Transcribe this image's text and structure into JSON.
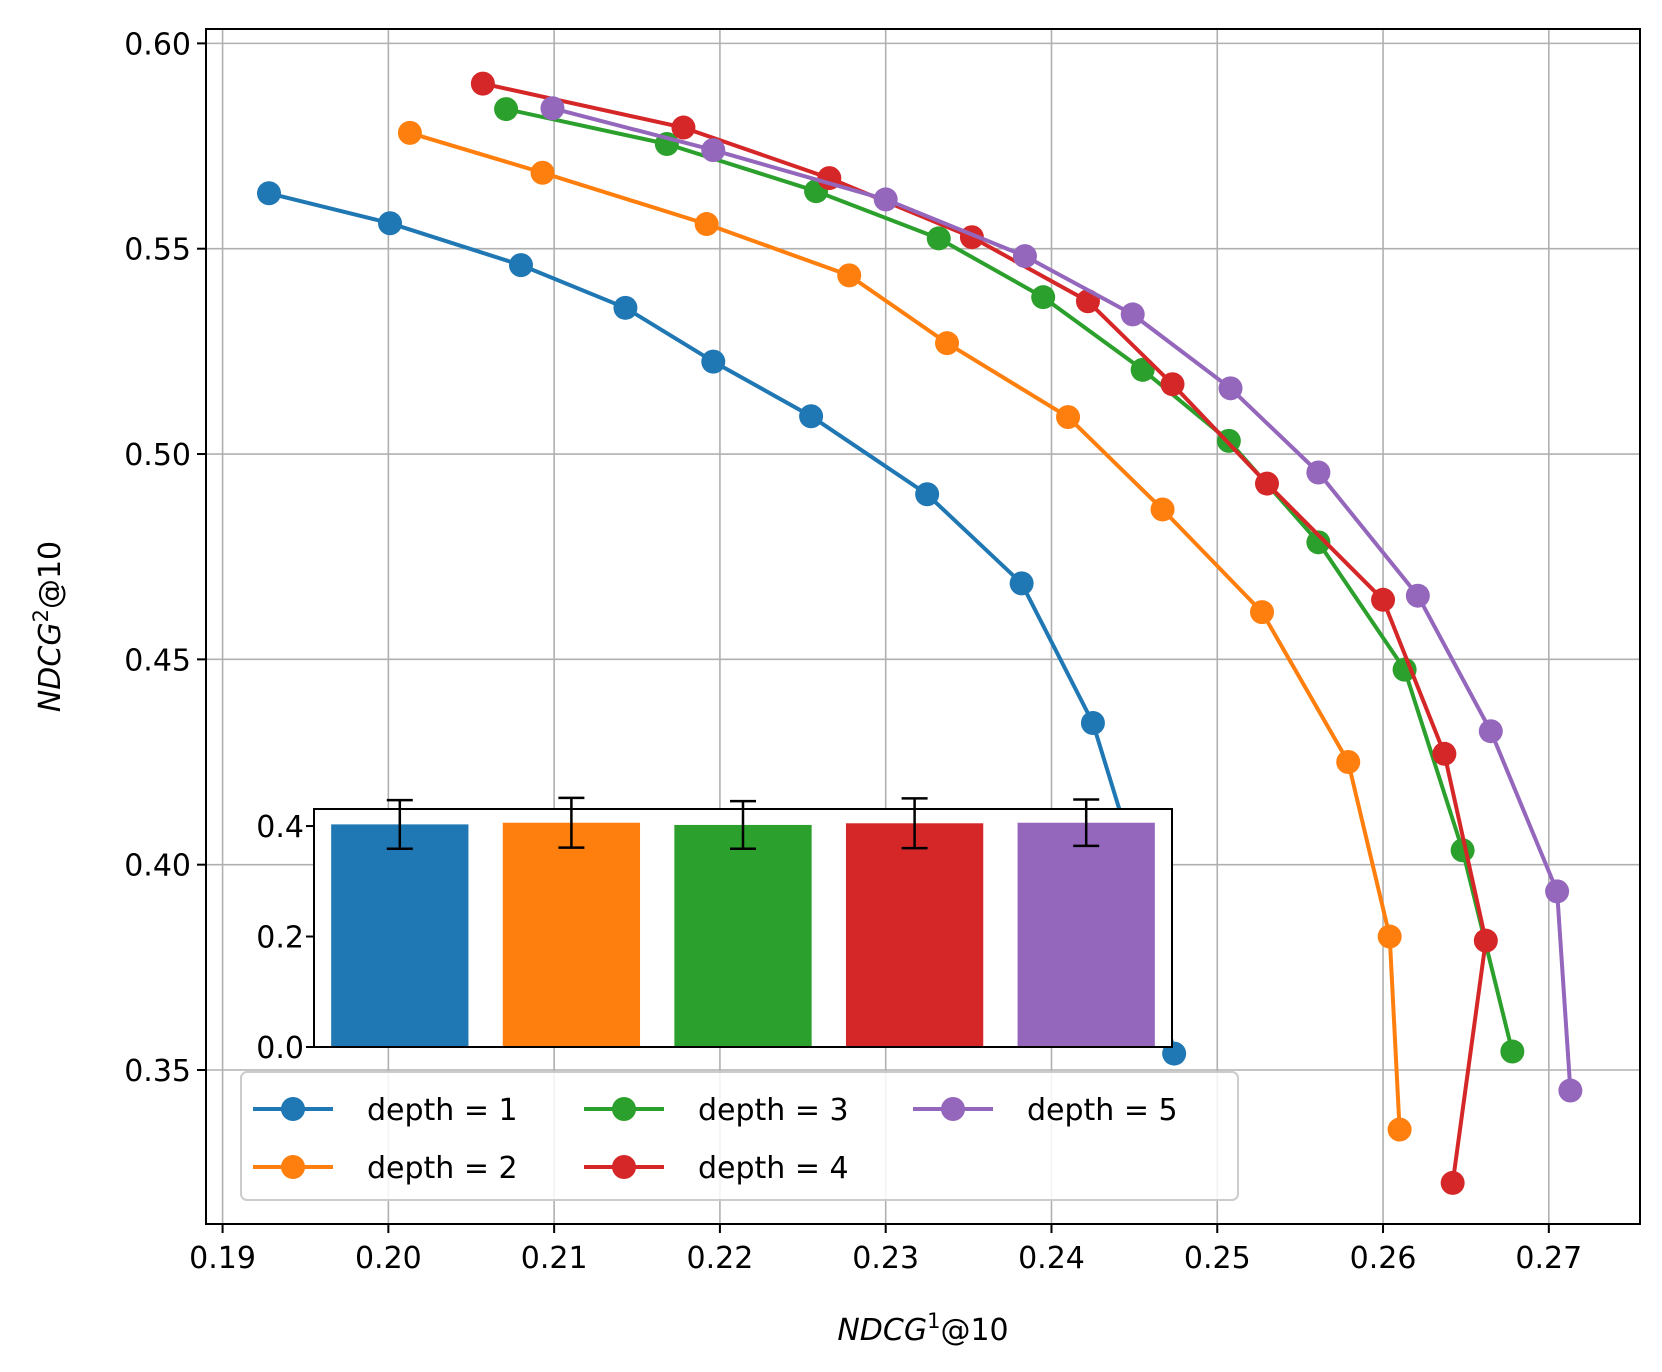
{
  "chart_data": [
    {
      "type": "line",
      "xlabel_main": "NDCG",
      "xlabel_sup": "1",
      "xlabel_suffix": "@10",
      "ylabel_main": "NDCG",
      "ylabel_sup": "2",
      "ylabel_suffix": "@10",
      "xlim": [
        0.189,
        0.2755
      ],
      "ylim": [
        0.3125,
        0.6035
      ],
      "xticks": [
        0.19,
        0.2,
        0.21,
        0.22,
        0.23,
        0.24,
        0.25,
        0.26,
        0.27
      ],
      "xtick_labels": [
        "0.19",
        "0.20",
        "0.21",
        "0.22",
        "0.23",
        "0.24",
        "0.25",
        "0.26",
        "0.27"
      ],
      "yticks": [
        0.35,
        0.4,
        0.45,
        0.5,
        0.55,
        0.6
      ],
      "ytick_labels": [
        "0.35",
        "0.40",
        "0.45",
        "0.50",
        "0.55",
        "0.60"
      ],
      "grid": true,
      "legend_position": "lower-left",
      "series": [
        {
          "name": "depth = 1",
          "color": "#1f77b4",
          "x": [
            0.1928,
            0.2001,
            0.208,
            0.2143,
            0.2196,
            0.2255,
            0.2325,
            0.2382,
            0.2425,
            0.2447,
            0.2474
          ],
          "y": [
            0.5635,
            0.5562,
            0.546,
            0.5356,
            0.5225,
            0.5092,
            0.4902,
            0.4685,
            0.4345,
            0.4055,
            0.354
          ]
        },
        {
          "name": "depth = 2",
          "color": "#ff7f0e",
          "x": [
            0.2013,
            0.2093,
            0.2192,
            0.2278,
            0.2337,
            0.241,
            0.2467,
            0.2527,
            0.2579,
            0.2604,
            0.261
          ],
          "y": [
            0.5782,
            0.5685,
            0.556,
            0.5435,
            0.527,
            0.509,
            0.4865,
            0.4615,
            0.425,
            0.3825,
            0.3355
          ]
        },
        {
          "name": "depth = 3",
          "color": "#2ca02c",
          "x": [
            0.2071,
            0.2168,
            0.2258,
            0.2332,
            0.2395,
            0.2455,
            0.2507,
            0.2561,
            0.2613,
            0.2648,
            0.2678
          ],
          "y": [
            0.584,
            0.5755,
            0.564,
            0.5525,
            0.5382,
            0.5205,
            0.5032,
            0.4785,
            0.4475,
            0.4035,
            0.3545
          ]
        },
        {
          "name": "depth = 4",
          "color": "#d62728",
          "x": [
            0.2057,
            0.2178,
            0.2266,
            0.2352,
            0.2422,
            0.2473,
            0.253,
            0.26,
            0.2637,
            0.2662,
            0.2642
          ],
          "y": [
            0.5902,
            0.5795,
            0.5672,
            0.5528,
            0.5372,
            0.517,
            0.4928,
            0.4645,
            0.427,
            0.3815,
            0.3225
          ]
        },
        {
          "name": "depth = 5",
          "color": "#9467bd",
          "x": [
            0.2099,
            0.2196,
            0.23,
            0.2384,
            0.2449,
            0.2508,
            0.2561,
            0.2621,
            0.2665,
            0.2705,
            0.2713
          ],
          "y": [
            0.5842,
            0.574,
            0.562,
            0.5482,
            0.534,
            0.516,
            0.4955,
            0.4655,
            0.4325,
            0.3935,
            0.345
          ]
        }
      ]
    },
    {
      "type": "bar",
      "categories": [
        "depth = 1",
        "depth = 2",
        "depth = 3",
        "depth = 4",
        "depth = 5"
      ],
      "values": [
        0.403,
        0.406,
        0.402,
        0.405,
        0.406
      ],
      "error": [
        0.044,
        0.045,
        0.043,
        0.045,
        0.042
      ],
      "colors": [
        "#1f77b4",
        "#ff7f0e",
        "#2ca02c",
        "#d62728",
        "#9467bd"
      ],
      "ylim": [
        0,
        0.405
      ],
      "yticks": [
        0.0,
        0.2,
        0.4
      ],
      "ytick_labels": [
        "0.0",
        "0.2",
        "0.4"
      ],
      "xlabel": "",
      "ylabel": ""
    }
  ]
}
